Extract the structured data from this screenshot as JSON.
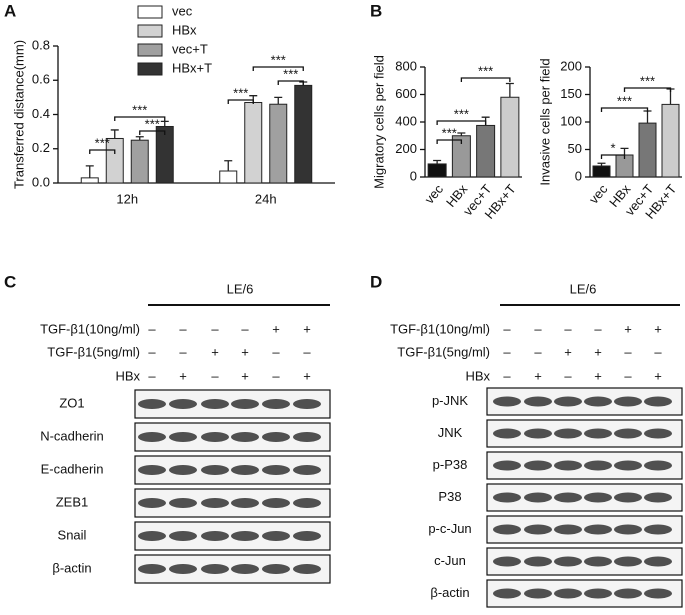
{
  "panel_labels": [
    "A",
    "B",
    "C",
    "D"
  ],
  "chart_data": [
    {
      "type": "bar",
      "ylabel": "Transferred distance(mm)",
      "categories": [
        "12h",
        "24h"
      ],
      "series": [
        {
          "name": "vec",
          "color": "#ffffff",
          "values": [
            0.03,
            0.07
          ],
          "errors": [
            0.07,
            0.06
          ]
        },
        {
          "name": "HBx",
          "color": "#d2d2d2",
          "values": [
            0.26,
            0.47
          ],
          "errors": [
            0.05,
            0.04
          ]
        },
        {
          "name": "vec+T",
          "color": "#a0a0a0",
          "values": [
            0.25,
            0.46
          ],
          "errors": [
            0.02,
            0.04
          ]
        },
        {
          "name": "HBx+T",
          "color": "#333333",
          "values": [
            0.33,
            0.57
          ],
          "errors": [
            0.03,
            0.02
          ]
        }
      ],
      "ylim": [
        0,
        0.8
      ],
      "yticks": [
        {
          "value": 0,
          "label": "0.0"
        },
        0.2,
        0.4,
        0.6,
        0.8
      ],
      "annotations": [
        "***",
        "***",
        "***",
        "***",
        "***",
        "***"
      ]
    },
    {
      "type": "bar",
      "ylabel": "Migratory cells per field",
      "categories": [
        "vec",
        "HBx",
        "vec+T",
        "HBx+T"
      ],
      "values": [
        95,
        300,
        375,
        580
      ],
      "errors": [
        25,
        20,
        60,
        100
      ],
      "colors": [
        "#111111",
        "#999999",
        "#777777",
        "#cccccc"
      ],
      "ylim": [
        0,
        800
      ],
      "yticks": [
        0,
        200,
        400,
        600,
        800
      ],
      "annotations": [
        "***",
        "***",
        "***"
      ]
    },
    {
      "type": "bar",
      "ylabel": "Invasive cells per field",
      "categories": [
        "vec",
        "HBx",
        "vec+T",
        "HBx+T"
      ],
      "values": [
        20,
        40,
        98,
        132
      ],
      "errors": [
        5,
        12,
        22,
        28
      ],
      "colors": [
        "#111111",
        "#999999",
        "#777777",
        "#cccccc"
      ],
      "ylim": [
        0,
        200
      ],
      "yticks": [
        0,
        50,
        100,
        150,
        200
      ],
      "annotations": [
        "*",
        "***",
        "***"
      ]
    }
  ],
  "blots": [
    {
      "header": "LE/6",
      "treatments": [
        {
          "label": "TGF-β1(10ng/ml)",
          "signs": [
            "–",
            "–",
            "–",
            "–",
            "+",
            "+"
          ]
        },
        {
          "label": "TGF-β1(5ng/ml)",
          "signs": [
            "–",
            "–",
            "+",
            "+",
            "–",
            "–"
          ]
        },
        {
          "label": "HBx",
          "signs": [
            "–",
            "+",
            "–",
            "+",
            "–",
            "+"
          ]
        }
      ],
      "rows": [
        "ZO1",
        "N-cadherin",
        "E-cadherin",
        "ZEB1",
        "Snail",
        "β-actin"
      ]
    },
    {
      "header": "LE/6",
      "treatments": [
        {
          "label": "TGF-β1(10ng/ml)",
          "signs": [
            "–",
            "–",
            "–",
            "–",
            "+",
            "+"
          ]
        },
        {
          "label": "TGF-β1(5ng/ml)",
          "signs": [
            "–",
            "–",
            "+",
            "+",
            "–",
            "–"
          ]
        },
        {
          "label": "HBx",
          "signs": [
            "–",
            "+",
            "–",
            "+",
            "–",
            "+"
          ]
        }
      ],
      "rows": [
        "p-JNK",
        "JNK",
        "p-P38",
        "P38",
        "p-c-Jun",
        "c-Jun",
        "β-actin"
      ]
    }
  ]
}
